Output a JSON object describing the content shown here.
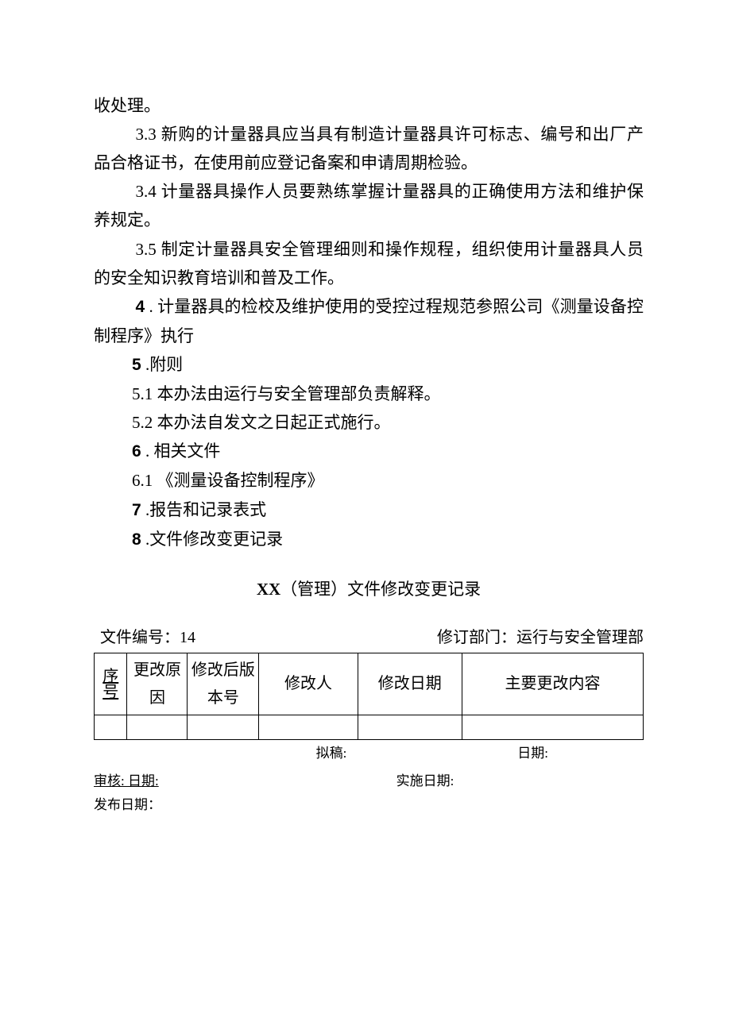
{
  "body": {
    "p0": "收处理。",
    "p1": "3.3  新购的计量器具应当具有制造计量器具许可标志、编号和出厂产品合格证书，在使用前应登记备案和申请周期检验。",
    "p2": "3.4  计量器具操作人员要熟练掌握计量器具的正确使用方法和维护保养规定。",
    "p3": "3.5  制定计量器具安全管理细则和操作规程，组织使用计量器具人员的安全知识教育培训和普及工作。",
    "p4_label": "4",
    "p4_text": " . 计量器具的检校及维护使用的受控过程规范参照公司《测量设备控制程序》执行",
    "p5_label": "5",
    "p5_text": "  .附则",
    "p5_1": "5.1    本办法由运行与安全管理部负责解释。",
    "p5_2": "5.2    本办法自发文之日起正式施行。",
    "p6_label": "6",
    "p6_text": "  . 相关文件",
    "p6_1": "6.1   《测量设备控制程序》",
    "p7_label": "7",
    "p7_text": "  .报告和记录表式",
    "p8_label": "8",
    "p8_text": "  .文件修改变更记录"
  },
  "section_title": {
    "xx": "XX",
    "rest": "（管理）文件修改变更记录"
  },
  "meta": {
    "doc_no": "文件编号：14",
    "rev_dept": "修订部门：运行与安全管理部"
  },
  "table": {
    "headers": {
      "seq_l1": "序",
      "seq_l2": "号",
      "reason": "更改原因",
      "ver": "修改后版本号",
      "person": "修改人",
      "date": "修改日期",
      "desc": "主要更改内容"
    }
  },
  "after": {
    "draft": "拟稿:",
    "date": "日期:"
  },
  "sign": {
    "review": "审核:    日期:",
    "impl": "实施日期:",
    "publish": "发布日期："
  }
}
